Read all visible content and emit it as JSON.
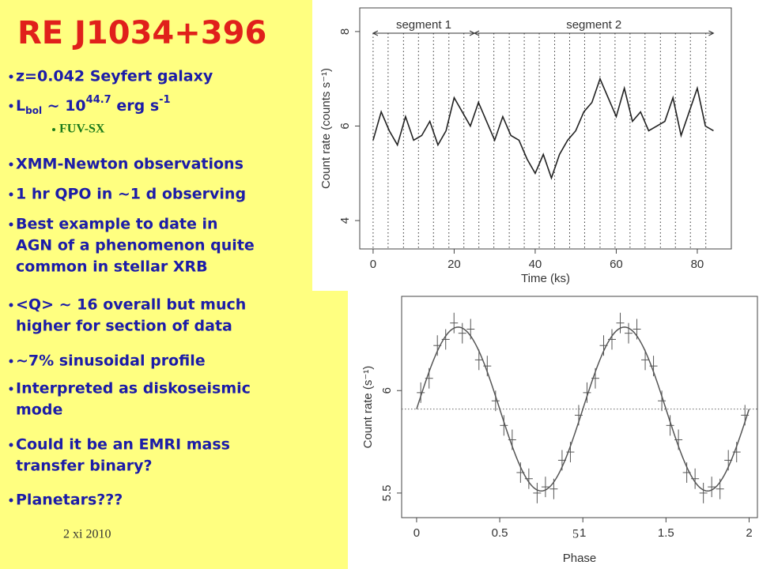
{
  "slide": {
    "title": "RE J1034+396",
    "bullets": [
      {
        "lines": [
          "z=0.042 Seyfert galaxy"
        ]
      },
      {
        "parts": [
          "L",
          "bol",
          " ~ 10",
          "44.7",
          " erg s",
          "-1"
        ]
      },
      {
        "lines": [
          "XMM-Newton observations"
        ]
      },
      {
        "lines": [
          "1 hr QPO in ~1 d observing"
        ]
      },
      {
        "lines": [
          "Best example to date in",
          "AGN of a phenomenon quite",
          "common in stellar XRB"
        ]
      },
      {
        "lines": [
          "<Q> ~ 16 overall but much",
          "higher for section of data"
        ]
      },
      {
        "lines": [
          "~7% sinusoidal profile"
        ]
      },
      {
        "lines": [
          "Interpreted as diskoseismic",
          "mode"
        ]
      },
      {
        "lines": [
          "Could it be an EMRI mass",
          "transfer binary?"
        ]
      },
      {
        "lines": [
          "Planetars???"
        ]
      }
    ],
    "sub_bullet": "FUV-SX",
    "date": "2 xi 2010",
    "page_number": "5"
  },
  "chart_data": [
    {
      "type": "line",
      "xlabel": "Time (ks)",
      "ylabel": "Count rate (counts s⁻¹)",
      "xlim": [
        -3.3,
        88.4
      ],
      "ylim": [
        3.4,
        8.5
      ],
      "xticks": [
        0,
        20,
        40,
        60,
        80
      ],
      "yticks": [
        4,
        6,
        8
      ],
      "x": [
        0,
        2,
        4,
        6,
        8,
        10,
        12,
        14,
        16,
        18,
        20,
        22,
        24,
        26,
        28,
        30,
        32,
        34,
        36,
        38,
        40,
        42,
        44,
        46,
        48,
        50,
        52,
        54,
        56,
        58,
        60,
        62,
        64,
        66,
        68,
        70,
        72,
        74,
        76,
        78,
        80,
        82,
        84
      ],
      "series": [
        {
          "color": "#222222",
          "values": [
            5.7,
            6.3,
            5.9,
            5.6,
            6.2,
            5.7,
            5.8,
            6.1,
            5.6,
            5.9,
            6.6,
            6.3,
            6.0,
            6.5,
            6.1,
            5.7,
            6.2,
            5.8,
            5.7,
            5.3,
            5.0,
            5.4,
            4.9,
            5.4,
            5.7,
            5.9,
            6.3,
            6.5,
            7.0,
            6.6,
            6.2,
            6.8,
            6.1,
            6.3,
            5.9,
            6.0,
            6.1,
            6.6,
            5.8,
            6.3,
            6.8,
            6.0,
            5.9
          ]
        }
      ],
      "markers": [
        0,
        3.7,
        7.5,
        11.2,
        14.9,
        18.7,
        22.4,
        26.1,
        29.8,
        33.6,
        37.3,
        41.0,
        44.8,
        48.5,
        52.2,
        56.0,
        59.7,
        63.4,
        67.1,
        70.9,
        74.6,
        78.3,
        82.1
      ],
      "segments": [
        {
          "label": "segment 1",
          "range": [
            0,
            25
          ]
        },
        {
          "label": "segment 2",
          "range": [
            25,
            84
          ]
        }
      ]
    },
    {
      "type": "scatter",
      "xlabel": "Phase",
      "ylabel": "Count rate (s⁻¹)",
      "xlim": [
        -0.09,
        2.05
      ],
      "ylim": [
        5.38,
        6.46
      ],
      "xticks": [
        0,
        0.5,
        1,
        1.5,
        2
      ],
      "yticks": [
        5.5,
        6
      ],
      "x": [
        0.025,
        0.075,
        0.125,
        0.175,
        0.225,
        0.275,
        0.325,
        0.375,
        0.425,
        0.475,
        0.525,
        0.575,
        0.625,
        0.675,
        0.725,
        0.775,
        0.825,
        0.875,
        0.925,
        0.975
      ],
      "values": [
        5.99,
        6.06,
        6.22,
        6.25,
        6.33,
        6.28,
        6.3,
        6.15,
        6.12,
        5.95,
        5.83,
        5.76,
        5.6,
        5.57,
        5.5,
        5.53,
        5.52,
        5.66,
        5.7,
        5.88
      ],
      "errors": [
        0.05,
        0.05,
        0.05,
        0.05,
        0.05,
        0.05,
        0.05,
        0.05,
        0.05,
        0.05,
        0.05,
        0.05,
        0.05,
        0.05,
        0.05,
        0.05,
        0.05,
        0.05,
        0.05,
        0.05
      ],
      "fit": {
        "mean": 5.91,
        "amplitude": 0.4,
        "peak_phase": 0.25
      },
      "color": "#555555"
    }
  ]
}
